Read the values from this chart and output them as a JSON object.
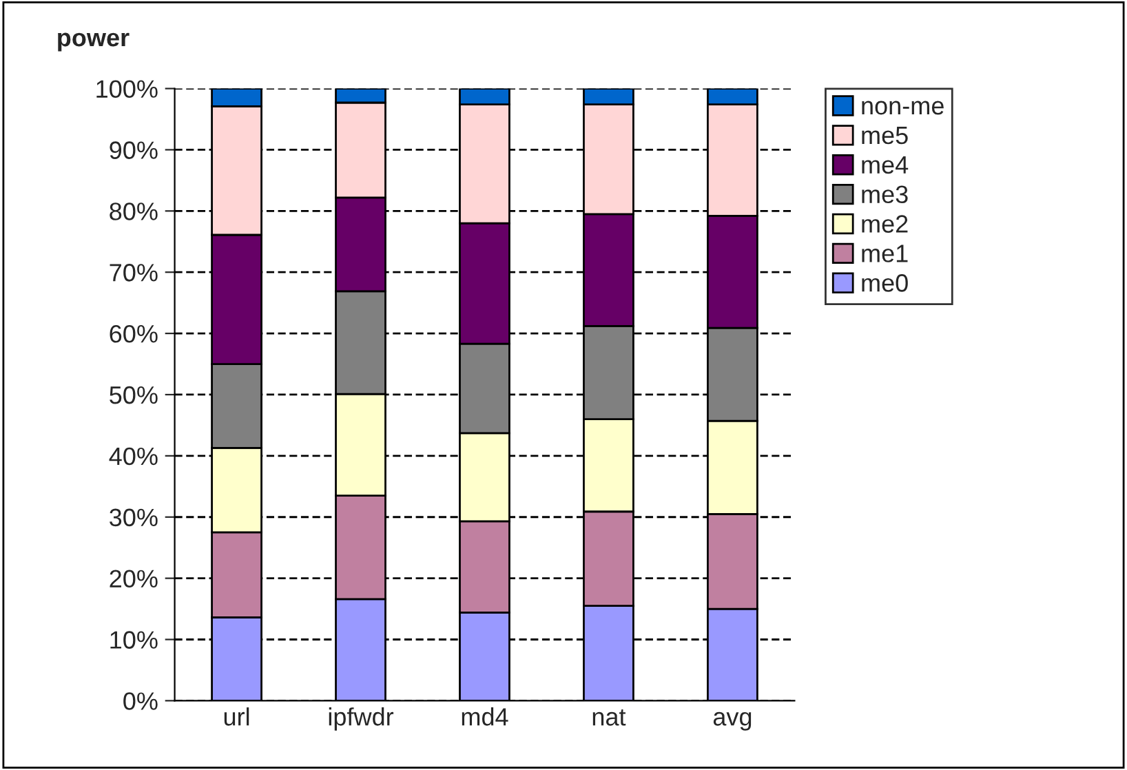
{
  "chart_data": {
    "type": "bar",
    "stacked": true,
    "title": "power",
    "categories": [
      "url",
      "ipfwdr",
      "md4",
      "nat",
      "avg"
    ],
    "series": [
      {
        "name": "me0",
        "color": "#9999ff",
        "values": [
          13.6,
          16.6,
          14.4,
          15.5,
          15.0
        ]
      },
      {
        "name": "me1",
        "color": "#c080a0",
        "values": [
          13.9,
          16.9,
          14.9,
          15.4,
          15.5
        ]
      },
      {
        "name": "me2",
        "color": "#ffffcc",
        "values": [
          13.8,
          16.6,
          14.4,
          15.1,
          15.2
        ]
      },
      {
        "name": "me3",
        "color": "#808080",
        "values": [
          13.7,
          16.8,
          14.6,
          15.2,
          15.2
        ]
      },
      {
        "name": "me4",
        "color": "#660066",
        "values": [
          21.1,
          15.3,
          19.7,
          18.3,
          18.3
        ]
      },
      {
        "name": "me5",
        "color": "#ffd6d6",
        "values": [
          21.0,
          15.5,
          19.4,
          17.9,
          18.2
        ]
      },
      {
        "name": "non-me",
        "color": "#0066cc",
        "values": [
          2.9,
          2.3,
          2.6,
          2.6,
          2.6
        ]
      }
    ],
    "ylim": [
      0,
      100
    ],
    "yticks": [
      {
        "value": 0,
        "label": "0%"
      },
      {
        "value": 10,
        "label": "10%"
      },
      {
        "value": 20,
        "label": "20%"
      },
      {
        "value": 30,
        "label": "30%"
      },
      {
        "value": 40,
        "label": "40%"
      },
      {
        "value": 50,
        "label": "50%"
      },
      {
        "value": 60,
        "label": "60%"
      },
      {
        "value": 70,
        "label": "70%"
      },
      {
        "value": 80,
        "label": "80%"
      },
      {
        "value": 90,
        "label": "90%"
      },
      {
        "value": 100,
        "label": "100%"
      }
    ],
    "grid": "y",
    "legend": "top right"
  }
}
